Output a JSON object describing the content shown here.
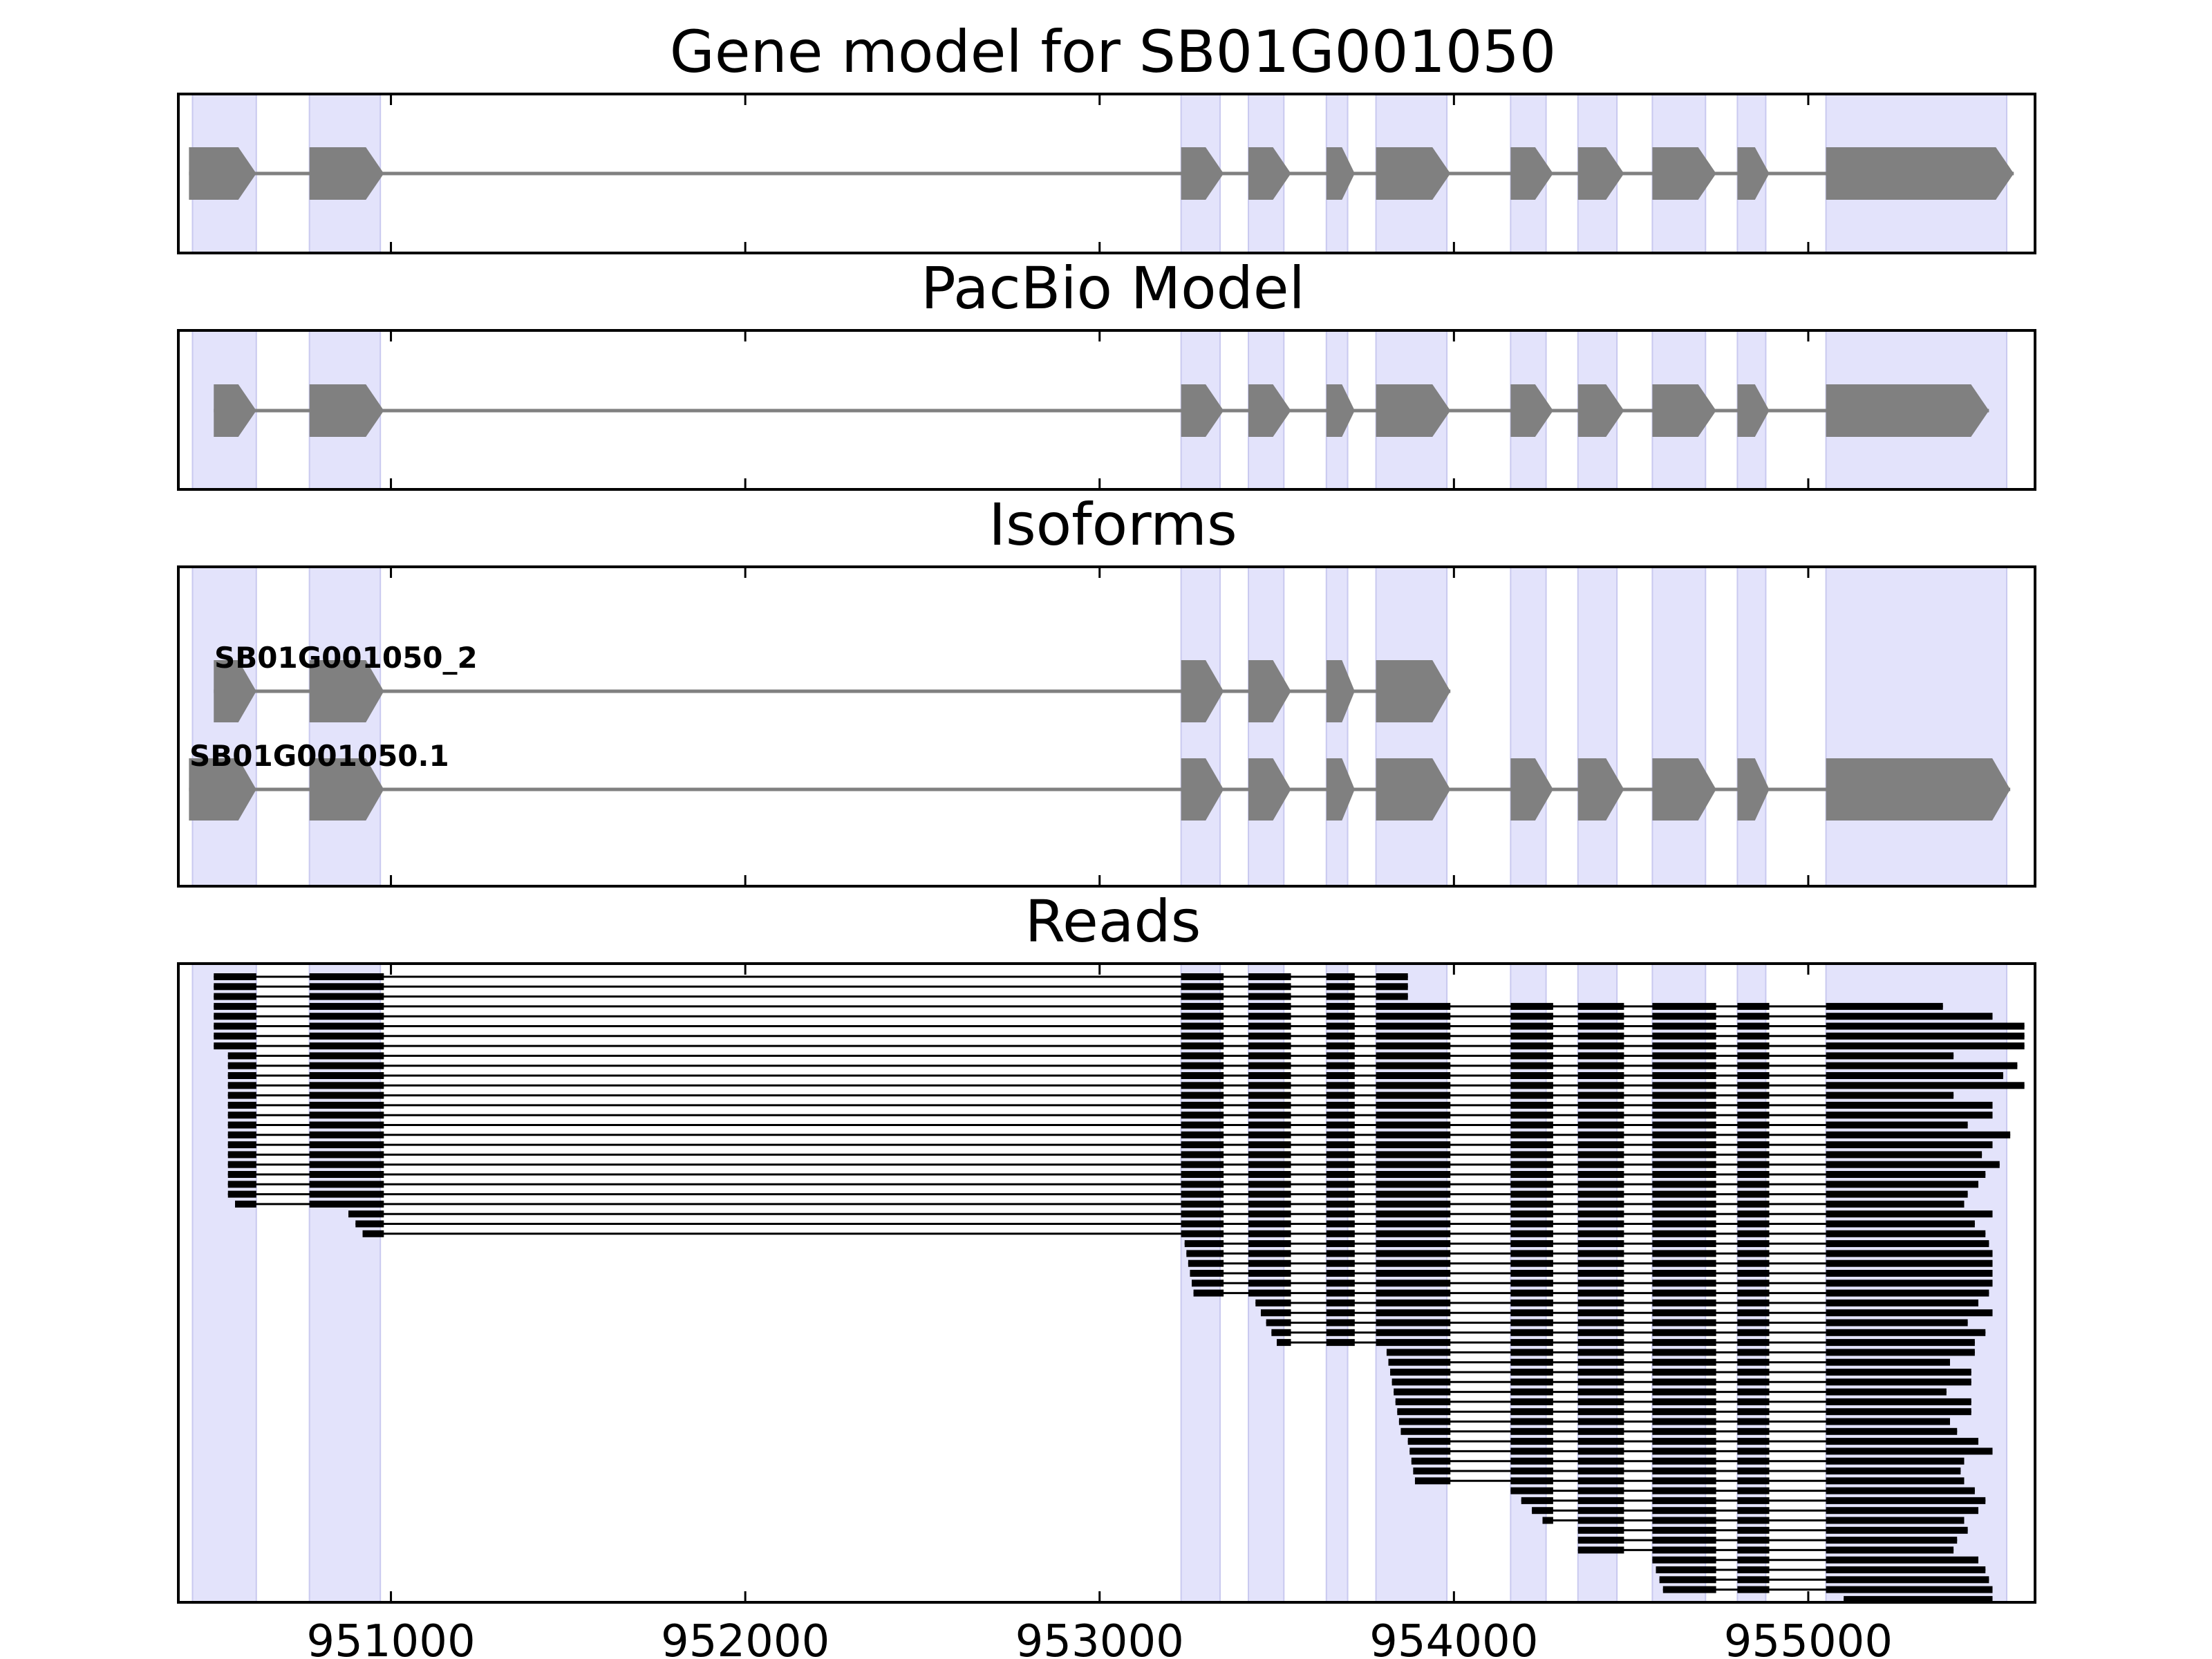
{
  "chart_data": {
    "type": "gene-structure",
    "x_range": [
      950400,
      955640
    ],
    "x_ticks": [
      951000,
      952000,
      953000,
      954000,
      955000
    ],
    "x_tick_labels": [
      "951000",
      "952000",
      "953000",
      "954000",
      "955000"
    ],
    "highlight_color": "#e3e3fb",
    "feature_color": "#808080",
    "read_color": "#000000",
    "exon_regions": [
      [
        950440,
        950620
      ],
      [
        950770,
        950970
      ],
      [
        953230,
        953340
      ],
      [
        953420,
        953520
      ],
      [
        953640,
        953700
      ],
      [
        953780,
        953980
      ],
      [
        954160,
        954260
      ],
      [
        954350,
        954460
      ],
      [
        954560,
        954710
      ],
      [
        954800,
        954880
      ],
      [
        955050,
        955560
      ]
    ],
    "panels": [
      {
        "title": "Gene model for SB01G001050",
        "strand": "+",
        "exons": [
          [
            950430,
            950620
          ],
          [
            950770,
            950980
          ],
          [
            953230,
            953350
          ],
          [
            953420,
            953540
          ],
          [
            953640,
            953720
          ],
          [
            953780,
            953990
          ],
          [
            954160,
            954280
          ],
          [
            954350,
            954480
          ],
          [
            954560,
            954740
          ],
          [
            954800,
            954890
          ],
          [
            955050,
            955580
          ]
        ]
      },
      {
        "title": "PacBio Model",
        "strand": "+",
        "exons": [
          [
            950500,
            950620
          ],
          [
            950770,
            950980
          ],
          [
            953230,
            953350
          ],
          [
            953420,
            953540
          ],
          [
            953640,
            953720
          ],
          [
            953780,
            953990
          ],
          [
            954160,
            954280
          ],
          [
            954350,
            954480
          ],
          [
            954560,
            954740
          ],
          [
            954800,
            954890
          ],
          [
            955050,
            955510
          ]
        ]
      },
      {
        "title": "Isoforms",
        "isoforms": [
          {
            "name": "SB01G001050_2",
            "exons": [
              [
                950500,
                950620
              ],
              [
                950770,
                950980
              ],
              [
                953230,
                953350
              ],
              [
                953420,
                953540
              ],
              [
                953640,
                953720
              ],
              [
                953780,
                953990
              ]
            ]
          },
          {
            "name": "SB01G001050.1",
            "exons": [
              [
                950430,
                950620
              ],
              [
                950770,
                950980
              ],
              [
                953230,
                953350
              ],
              [
                953420,
                953540
              ],
              [
                953640,
                953720
              ],
              [
                953780,
                953990
              ],
              [
                954160,
                954280
              ],
              [
                954350,
                954480
              ],
              [
                954560,
                954740
              ],
              [
                954800,
                954890
              ],
              [
                955050,
                955570
              ]
            ]
          }
        ]
      },
      {
        "title": "Reads",
        "read_count": 64
      }
    ]
  }
}
